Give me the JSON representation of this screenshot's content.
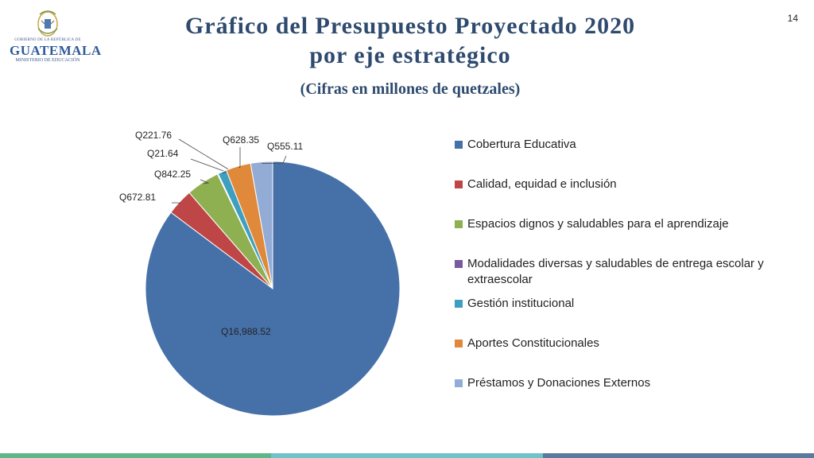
{
  "header": {
    "title_line1": "Gráfico del Presupuesto Proyectado 2020",
    "title_line2": "por eje estratégico",
    "subtitle": "(Cifras en millones de quetzales)",
    "page_number": "14"
  },
  "logo": {
    "line1": "GOBIERNO DE LA REPÚBLICA DE",
    "line2": "GUATEMALA",
    "line3": "MINISTERIO DE EDUCACIÓN",
    "icon": "coat-of-arms-icon"
  },
  "chart_data": {
    "type": "pie",
    "title": "Gráfico del Presupuesto Proyectado 2020 por eje estratégico",
    "subtitle": "(Cifras en millones de quetzales)",
    "legend_position": "right",
    "slices": [
      {
        "name": "Cobertura Educativa",
        "value": 16988.52,
        "label": "Q16,988.52",
        "color": "#4671a8"
      },
      {
        "name": "Calidad, equidad e inclusión",
        "value": 672.81,
        "label": "Q672.81",
        "color": "#bf4646"
      },
      {
        "name": "Espacios dignos y saludables para el aprendizaje",
        "value": 842.25,
        "label": "Q842.25",
        "color": "#8fb050"
      },
      {
        "name": "Modalidades diversas y saludables de entrega escolar y extraescolar",
        "value": 21.64,
        "label": "Q21.64",
        "color": "#7a5a9e"
      },
      {
        "name": "Gestión institucional",
        "value": 221.76,
        "label": "Q221.76",
        "color": "#3f9fc0"
      },
      {
        "name": "Aportes Constitucionales",
        "value": 628.35,
        "label": "Q628.35",
        "color": "#e0893a"
      },
      {
        "name": "Préstamos y Donaciones Externos",
        "value": 555.11,
        "label": "Q555.11",
        "color": "#93acd6"
      }
    ]
  },
  "footer": {
    "colors": [
      "#5cb88a",
      "#6ec3c8",
      "#5a7aa0"
    ]
  }
}
